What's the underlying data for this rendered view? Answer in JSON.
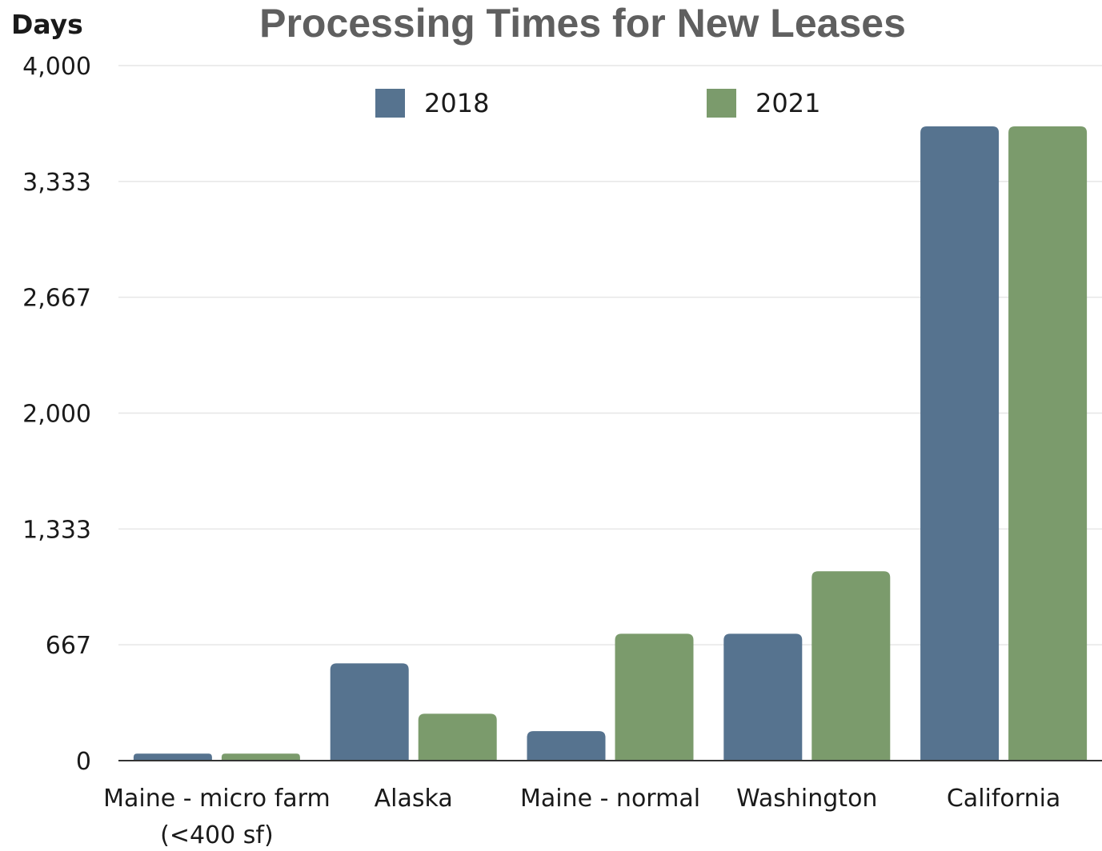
{
  "chart_data": {
    "type": "bar",
    "title": "Processing Times for New Leases",
    "xlabel": "",
    "ylabel": "Days",
    "ylim": [
      0,
      4000
    ],
    "yticks": [
      "0",
      "667",
      "1,333",
      "2,000",
      "2,667",
      "3,333",
      "4,000"
    ],
    "ytick_values": [
      0,
      667,
      1333,
      2000,
      2667,
      3333,
      4000
    ],
    "categories": [
      [
        "Maine - micro farm",
        "(<400 sf)"
      ],
      [
        "Alaska"
      ],
      [
        "Maine - normal"
      ],
      [
        "Washington"
      ],
      [
        "California"
      ]
    ],
    "series": [
      {
        "name": "2018",
        "color": "#56738f",
        "values": [
          40,
          560,
          170,
          730,
          3650
        ]
      },
      {
        "name": "2021",
        "color": "#7b9b6c",
        "values": [
          40,
          270,
          730,
          1090,
          3650
        ]
      }
    ],
    "grid": true,
    "legend": "top-center"
  }
}
